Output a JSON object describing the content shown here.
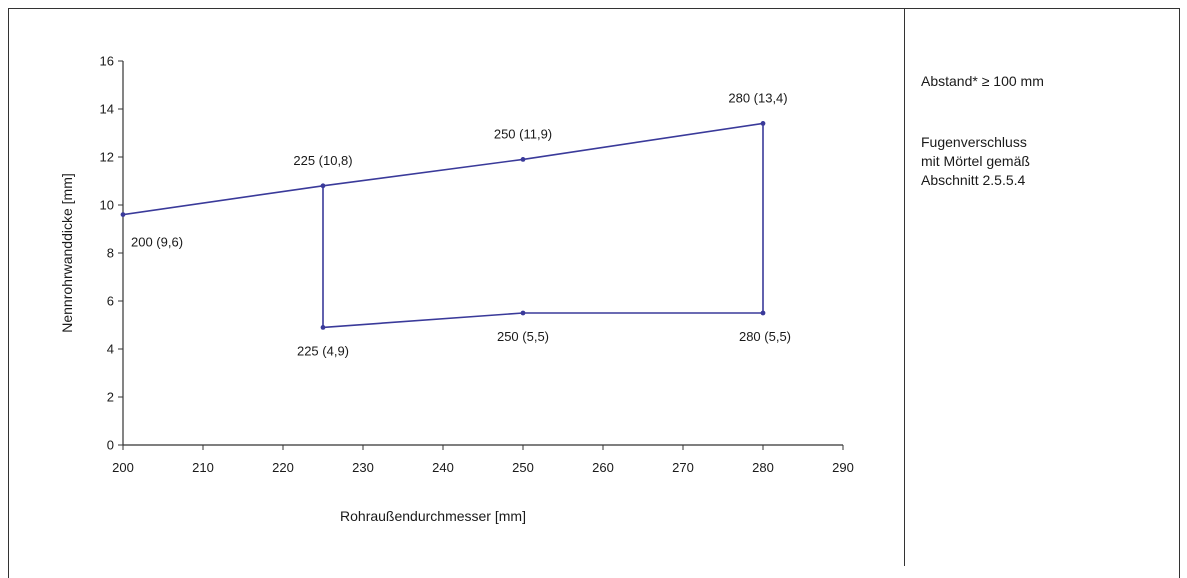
{
  "side_notes": {
    "line1": "Abstand* ≥ 100 mm",
    "line2a": "Fugenverschluss",
    "line2b": "mit Mörtel gemäß",
    "line2c": "Abschnitt 2.5.5.4"
  },
  "chart_data": {
    "type": "line",
    "title": "",
    "xlabel": "Rohraußendurchmesser [mm]",
    "ylabel": "Nennrohrwanddicke [mm]",
    "xlim": [
      200,
      290
    ],
    "ylim": [
      0,
      16
    ],
    "xticks": [
      200,
      210,
      220,
      230,
      240,
      250,
      260,
      270,
      280,
      290
    ],
    "yticks": [
      0,
      2,
      4,
      6,
      8,
      10,
      12,
      14,
      16
    ],
    "grid": false,
    "line_color": "#3a3a9a",
    "path": [
      {
        "x": 200,
        "y": 9.6
      },
      {
        "x": 225,
        "y": 10.8
      },
      {
        "x": 250,
        "y": 11.9
      },
      {
        "x": 280,
        "y": 13.4
      },
      {
        "x": 280,
        "y": 5.5
      },
      {
        "x": 250,
        "y": 5.5
      },
      {
        "x": 225,
        "y": 4.9
      },
      {
        "x": 225,
        "y": 10.8
      }
    ],
    "point_labels": [
      {
        "x": 200,
        "y": 9.6,
        "text": "200 (9,6)",
        "anchor": "below-right"
      },
      {
        "x": 225,
        "y": 10.8,
        "text": "225 (10,8)",
        "anchor": "above"
      },
      {
        "x": 250,
        "y": 11.9,
        "text": "250 (11,9)",
        "anchor": "above"
      },
      {
        "x": 280,
        "y": 13.4,
        "text": "280 (13,4)",
        "anchor": "above"
      },
      {
        "x": 225,
        "y": 4.9,
        "text": "225 (4,9)",
        "anchor": "below"
      },
      {
        "x": 250,
        "y": 5.5,
        "text": "250 (5,5)",
        "anchor": "below"
      },
      {
        "x": 280,
        "y": 5.5,
        "text": "280 (5,5)",
        "anchor": "below"
      }
    ]
  }
}
